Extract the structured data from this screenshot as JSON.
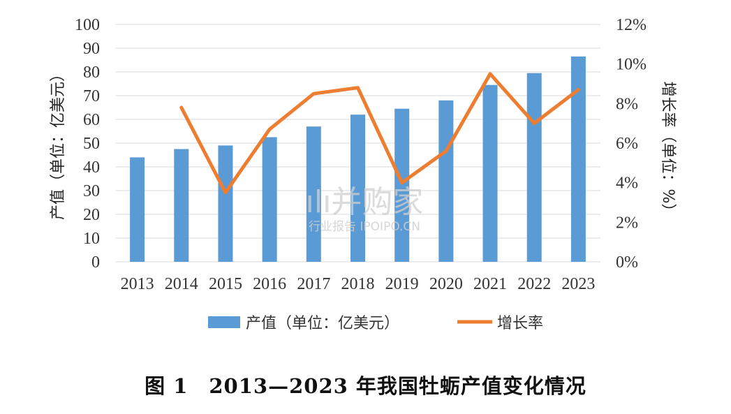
{
  "caption": "图 1　2013—2023 年我国牡蛎产值变化情况",
  "watermark": {
    "main": "ılı并购家",
    "sub": "行业报告 IPOIPO.CN"
  },
  "colors": {
    "bar": "#5b9bd5",
    "line": "#ed7d31",
    "grid": "#d9d9d9"
  },
  "chart_data": {
    "type": "bar+line",
    "title": "图 1　2013—2023 年我国牡蛎产值变化情况",
    "categories": [
      "2013",
      "2014",
      "2015",
      "2016",
      "2017",
      "2018",
      "2019",
      "2020",
      "2021",
      "2022",
      "2023"
    ],
    "series": [
      {
        "name": "产值（单位：亿美元）",
        "type": "bar",
        "axis": "left",
        "values": [
          44,
          47.5,
          49,
          52.5,
          57,
          62,
          64.5,
          68,
          74.5,
          79.5,
          86.5
        ]
      },
      {
        "name": "增长率",
        "type": "line",
        "axis": "right",
        "values": [
          null,
          7.8,
          3.5,
          6.7,
          8.5,
          8.8,
          4.0,
          5.6,
          9.5,
          7.0,
          8.7
        ]
      }
    ],
    "ylabel": "产值（单位：亿美元）",
    "y2label": "增长率（单位：%）",
    "ylim": [
      0,
      100
    ],
    "yticks": [
      0,
      10,
      20,
      30,
      40,
      50,
      60,
      70,
      80,
      90,
      100
    ],
    "y2lim": [
      0,
      12
    ],
    "y2ticks": [
      "0%",
      "2%",
      "4%",
      "6%",
      "8%",
      "10%",
      "12%"
    ],
    "grid": true,
    "legend": "bottom"
  }
}
